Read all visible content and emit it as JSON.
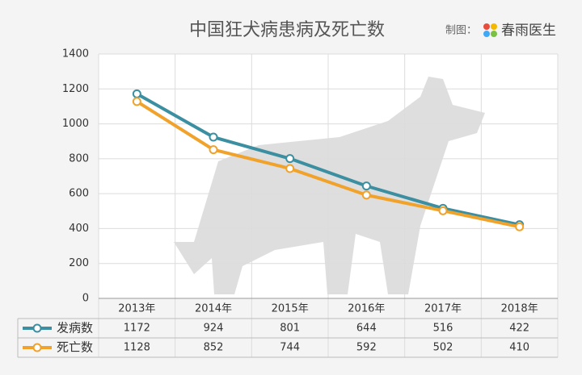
{
  "chart_data": {
    "type": "line",
    "title": "中国狂犬病患病及死亡数",
    "credit_label": "制图：",
    "credit_name": "春雨医生",
    "categories": [
      "2013年",
      "2014年",
      "2015年",
      "2016年",
      "2017年",
      "2018年"
    ],
    "series": [
      {
        "name": "发病数",
        "color": "#3b8fa1",
        "values": [
          1172,
          924,
          801,
          644,
          516,
          422
        ]
      },
      {
        "name": "死亡数",
        "color": "#f0a22a",
        "values": [
          1128,
          852,
          744,
          592,
          502,
          410
        ]
      }
    ],
    "ylim": [
      0,
      1400
    ],
    "yticks": [
      0,
      200,
      400,
      600,
      800,
      1000,
      1200,
      1400
    ],
    "grid": true
  }
}
